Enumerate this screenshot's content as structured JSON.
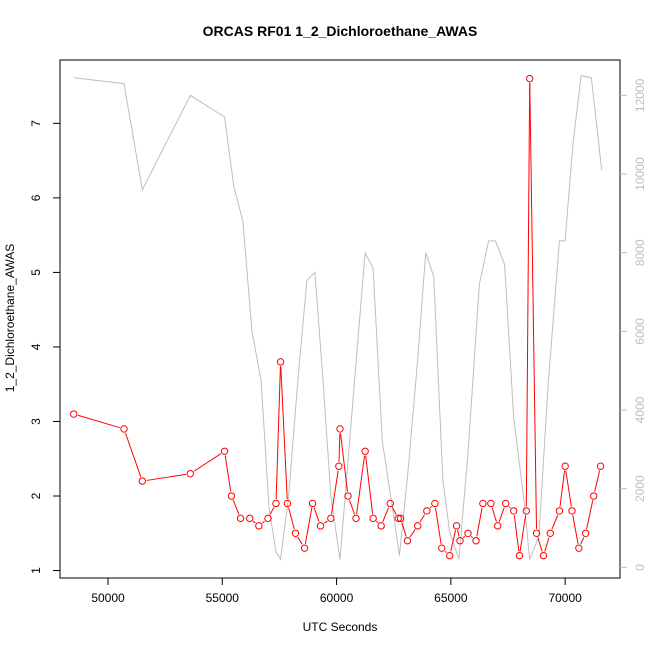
{
  "chart_data": {
    "type": "line",
    "title": "ORCAS RF01 1_2_Dichloroethane_AWAS",
    "xlabel": "UTC Seconds",
    "ylabel": "1_2_Dichloroethane_AWAS",
    "xlim": [
      47900,
      72400
    ],
    "ylim": [
      0.9,
      7.85
    ],
    "y2lim": [
      -270,
      12900
    ],
    "grid": false,
    "x_ticks": [
      "50000",
      "55000",
      "60000",
      "65000",
      "70000"
    ],
    "y_ticks": [
      "1",
      "2",
      "3",
      "4",
      "5",
      "6",
      "7"
    ],
    "y2_ticks": [
      "0",
      "2000",
      "4000",
      "6000",
      "8000",
      "10000",
      "12000"
    ],
    "series": [
      {
        "axis": "left",
        "color": "#ff0000",
        "marker": "open-circle",
        "points": [
          [
            48500,
            3.1
          ],
          [
            50700,
            2.9
          ],
          [
            51500,
            2.2
          ],
          [
            53600,
            2.3
          ],
          [
            55100,
            2.6
          ],
          [
            55400,
            2.0
          ],
          [
            55800,
            1.7
          ],
          [
            56200,
            1.7
          ],
          [
            56600,
            1.6
          ],
          [
            57000,
            1.7
          ],
          [
            57350,
            1.9
          ],
          [
            57550,
            3.8
          ],
          [
            57850,
            1.9
          ],
          [
            58200,
            1.5
          ],
          [
            58600,
            1.3
          ],
          [
            58950,
            1.9
          ],
          [
            59300,
            1.6
          ],
          [
            59750,
            1.7
          ],
          [
            60100,
            2.4
          ],
          [
            60150,
            2.9
          ],
          [
            60500,
            2.0
          ],
          [
            60850,
            1.7
          ],
          [
            61250,
            2.6
          ],
          [
            61600,
            1.7
          ],
          [
            61950,
            1.6
          ],
          [
            62350,
            1.9
          ],
          [
            62700,
            1.7
          ],
          [
            62800,
            1.7
          ],
          [
            63100,
            1.4
          ],
          [
            63550,
            1.6
          ],
          [
            63950,
            1.8
          ],
          [
            64300,
            1.9
          ],
          [
            64600,
            1.3
          ],
          [
            64950,
            1.2
          ],
          [
            65250,
            1.6
          ],
          [
            65400,
            1.4
          ],
          [
            65750,
            1.5
          ],
          [
            66100,
            1.4
          ],
          [
            66400,
            1.9
          ],
          [
            66750,
            1.9
          ],
          [
            67050,
            1.6
          ],
          [
            67400,
            1.9
          ],
          [
            67750,
            1.8
          ],
          [
            68000,
            1.2
          ],
          [
            68300,
            1.8
          ],
          [
            68450,
            7.6
          ],
          [
            68750,
            1.5
          ],
          [
            69050,
            1.2
          ],
          [
            69350,
            1.5
          ],
          [
            69750,
            1.8
          ],
          [
            70000,
            2.4
          ],
          [
            70300,
            1.8
          ],
          [
            70600,
            1.3
          ],
          [
            70900,
            1.5
          ],
          [
            71250,
            2.0
          ],
          [
            71550,
            2.4
          ]
        ]
      },
      {
        "axis": "right",
        "color": "#bebebe",
        "marker": "none",
        "points": [
          [
            48500,
            12450
          ],
          [
            50700,
            12300
          ],
          [
            51500,
            9600
          ],
          [
            53600,
            12000
          ],
          [
            55100,
            11450
          ],
          [
            55500,
            9700
          ],
          [
            55900,
            8800
          ],
          [
            56300,
            6000
          ],
          [
            56700,
            4750
          ],
          [
            57050,
            1500
          ],
          [
            57350,
            400
          ],
          [
            57550,
            200
          ],
          [
            57900,
            1800
          ],
          [
            58300,
            4700
          ],
          [
            58700,
            7300
          ],
          [
            59050,
            7500
          ],
          [
            59400,
            4800
          ],
          [
            59750,
            1800
          ],
          [
            60150,
            200
          ],
          [
            60500,
            2700
          ],
          [
            60850,
            5200
          ],
          [
            61250,
            8000
          ],
          [
            61600,
            7600
          ],
          [
            62000,
            3200
          ],
          [
            62450,
            1500
          ],
          [
            62750,
            300
          ],
          [
            63150,
            2600
          ],
          [
            63550,
            5300
          ],
          [
            63900,
            8000
          ],
          [
            64250,
            7400
          ],
          [
            64650,
            2200
          ],
          [
            64950,
            900
          ],
          [
            65350,
            200
          ],
          [
            65750,
            2900
          ],
          [
            66250,
            7200
          ],
          [
            66650,
            8300
          ],
          [
            66950,
            8300
          ],
          [
            67350,
            7700
          ],
          [
            67750,
            3800
          ],
          [
            68200,
            1700
          ],
          [
            68450,
            200
          ],
          [
            68850,
            800
          ],
          [
            69250,
            4600
          ],
          [
            69750,
            8300
          ],
          [
            70000,
            8300
          ],
          [
            70350,
            10800
          ],
          [
            70700,
            12500
          ],
          [
            71150,
            12450
          ],
          [
            71600,
            10100
          ]
        ]
      }
    ]
  }
}
